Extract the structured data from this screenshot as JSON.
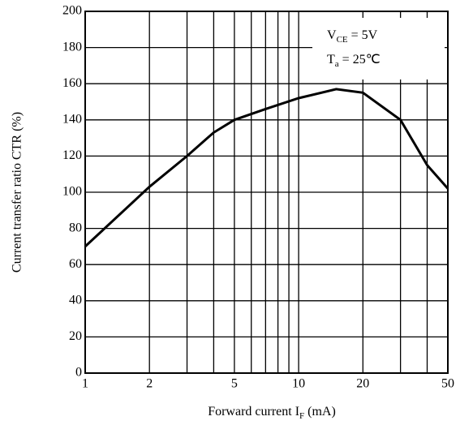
{
  "chart_data": {
    "type": "line",
    "x": [
      1,
      2,
      3,
      4,
      5,
      7,
      10,
      15,
      20,
      30,
      40,
      50
    ],
    "series": [
      {
        "name": "CTR",
        "color": "#000000",
        "values": [
          70,
          103,
          120,
          133,
          140,
          146,
          152,
          157,
          155,
          140,
          115,
          102
        ]
      }
    ],
    "xlim": [
      1,
      50
    ],
    "ylim": [
      0,
      200
    ],
    "xlog": true,
    "xticks": [
      1,
      2,
      5,
      10,
      20,
      50
    ],
    "xminor": [
      3,
      4,
      6,
      7,
      8,
      9,
      30,
      40
    ],
    "yticks": [
      0,
      20,
      40,
      60,
      80,
      100,
      120,
      140,
      160,
      180,
      200
    ],
    "grid": true,
    "xlabel": {
      "text": "Forward current  I",
      "sub": "F",
      "rest": "  (mA)"
    },
    "ylabel": "Current transfer ratio CTR (%)",
    "annotations": [
      {
        "text": "V",
        "sub": "CE",
        "rest": " = 5V"
      },
      {
        "text": "T",
        "sub": "a",
        "rest": " = 25℃"
      }
    ]
  }
}
